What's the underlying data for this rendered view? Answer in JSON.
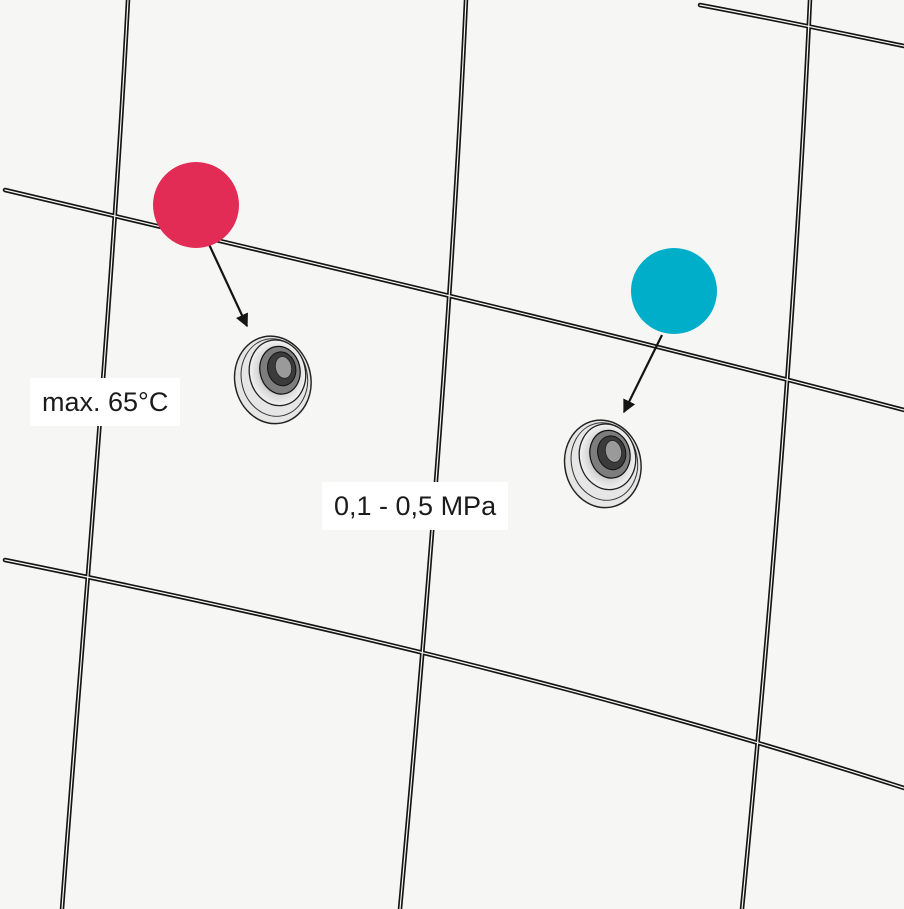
{
  "labels": {
    "temperature": "max. 65°C",
    "pressure": "0,1 - 0,5 MPa"
  },
  "markers": {
    "hot_color": "#e22c55",
    "cold_color": "#00aec9"
  },
  "colors": {
    "background": "#f6f6f5",
    "tile_grout": "#141414",
    "label_background": "#ffffff"
  }
}
